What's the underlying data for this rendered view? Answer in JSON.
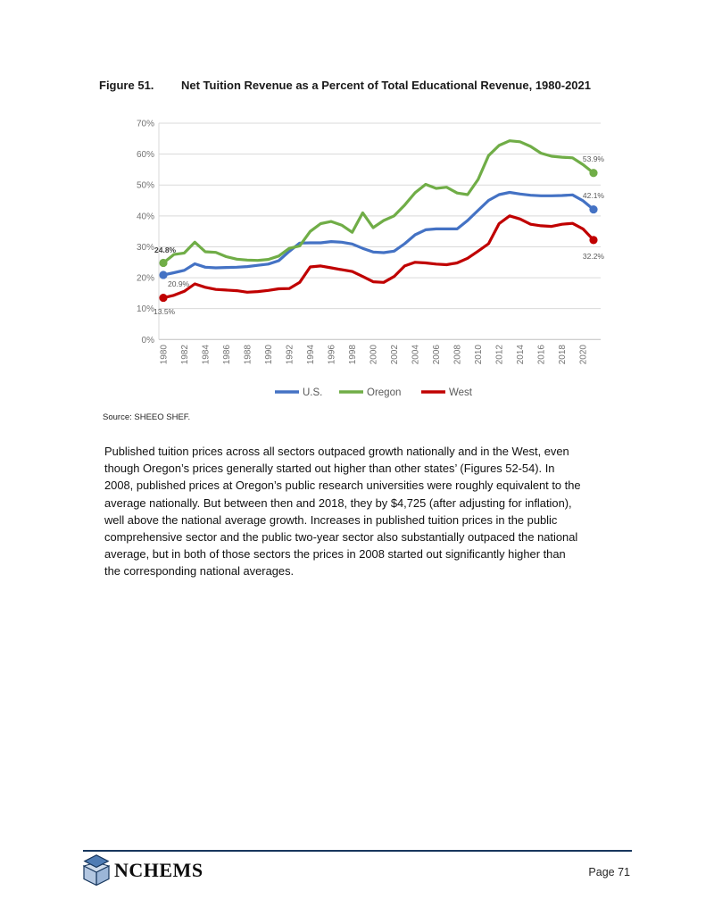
{
  "figure": {
    "label": "Figure 51.",
    "title": "Net Tuition Revenue as a Percent of Total Educational Revenue, 1980-2021"
  },
  "chart_data": {
    "type": "line",
    "x": [
      1980,
      1981,
      1982,
      1983,
      1984,
      1985,
      1986,
      1987,
      1988,
      1989,
      1990,
      1991,
      1992,
      1993,
      1994,
      1995,
      1996,
      1997,
      1998,
      1999,
      2000,
      2001,
      2002,
      2003,
      2004,
      2005,
      2006,
      2007,
      2008,
      2009,
      2010,
      2011,
      2012,
      2013,
      2014,
      2015,
      2016,
      2017,
      2018,
      2019,
      2020,
      2021
    ],
    "x_tick_labels": [
      "1980",
      "1982",
      "1984",
      "1986",
      "1988",
      "1990",
      "1992",
      "1994",
      "1996",
      "1998",
      "2000",
      "2002",
      "2004",
      "2006",
      "2008",
      "2010",
      "2012",
      "2014",
      "2016",
      "2018",
      "2020"
    ],
    "ylim": [
      0,
      70
    ],
    "y_tick_labels": [
      "0%",
      "10%",
      "20%",
      "30%",
      "40%",
      "50%",
      "60%",
      "70%"
    ],
    "grid": true,
    "legend_position": "bottom",
    "series": [
      {
        "name": "U.S.",
        "color": "#4472C4",
        "start_label": "20.9%",
        "end_label": "42.1%",
        "values": [
          20.9,
          21.6,
          22.4,
          24.5,
          23.4,
          23.2,
          23.3,
          23.4,
          23.6,
          24.0,
          24.4,
          25.5,
          28.5,
          31.2,
          31.3,
          31.3,
          31.7,
          31.5,
          30.9,
          29.5,
          28.3,
          28.1,
          28.6,
          31.0,
          33.9,
          35.5,
          35.8,
          35.8,
          35.8,
          38.5,
          41.8,
          45.0,
          46.9,
          47.6,
          47.1,
          46.7,
          46.5,
          46.5,
          46.6,
          46.8,
          44.9,
          42.1
        ]
      },
      {
        "name": "Oregon",
        "color": "#70AD47",
        "start_label": "24.8%",
        "end_label": "53.9%",
        "values": [
          24.8,
          27.5,
          28.0,
          31.5,
          28.4,
          28.2,
          26.8,
          26.0,
          25.7,
          25.6,
          25.9,
          27.0,
          29.5,
          30.3,
          35.0,
          37.5,
          38.2,
          37.0,
          34.7,
          41.0,
          36.2,
          38.5,
          40.0,
          43.5,
          47.5,
          50.2,
          48.9,
          49.3,
          47.4,
          46.9,
          51.8,
          59.5,
          62.8,
          64.3,
          64.0,
          62.5,
          60.3,
          59.3,
          59.0,
          58.8,
          56.6,
          53.9
        ]
      },
      {
        "name": "West",
        "color": "#C00000",
        "start_label": "13.5%",
        "end_label": "32.2%",
        "values": [
          13.5,
          14.3,
          15.6,
          18.0,
          16.9,
          16.2,
          16.0,
          15.8,
          15.3,
          15.5,
          15.9,
          16.4,
          16.5,
          18.5,
          23.5,
          23.8,
          23.2,
          22.6,
          22.0,
          20.4,
          18.7,
          18.5,
          20.4,
          23.8,
          25.0,
          24.8,
          24.4,
          24.2,
          24.8,
          26.3,
          28.6,
          31.0,
          37.5,
          40.0,
          39.0,
          37.3,
          36.8,
          36.6,
          37.3,
          37.6,
          35.8,
          32.2
        ]
      }
    ]
  },
  "source_note": "Source: SHEEO SHEF.",
  "paragraph_lines": [
    "Published tuition prices across all sectors outpaced growth nationally and in the West, even",
    "though Oregon’s prices generally started out higher than other states’ (Figures 52-54). In",
    "2008, published prices at Oregon’s public research universities were roughly equivalent to the",
    "average nationally. But between then and 2018, they by $4,725 (after adjusting for inflation),",
    "well above the national average growth. Increases in published tuition prices in the public",
    "comprehensive sector and the public two-year sector also substantially outpaced the national",
    "average, but in both of those sectors the prices in 2008 started out significantly higher than",
    "the corresponding national averages."
  ],
  "footer": {
    "logo_text": "NCHEMS",
    "page_label": "Page 71"
  }
}
